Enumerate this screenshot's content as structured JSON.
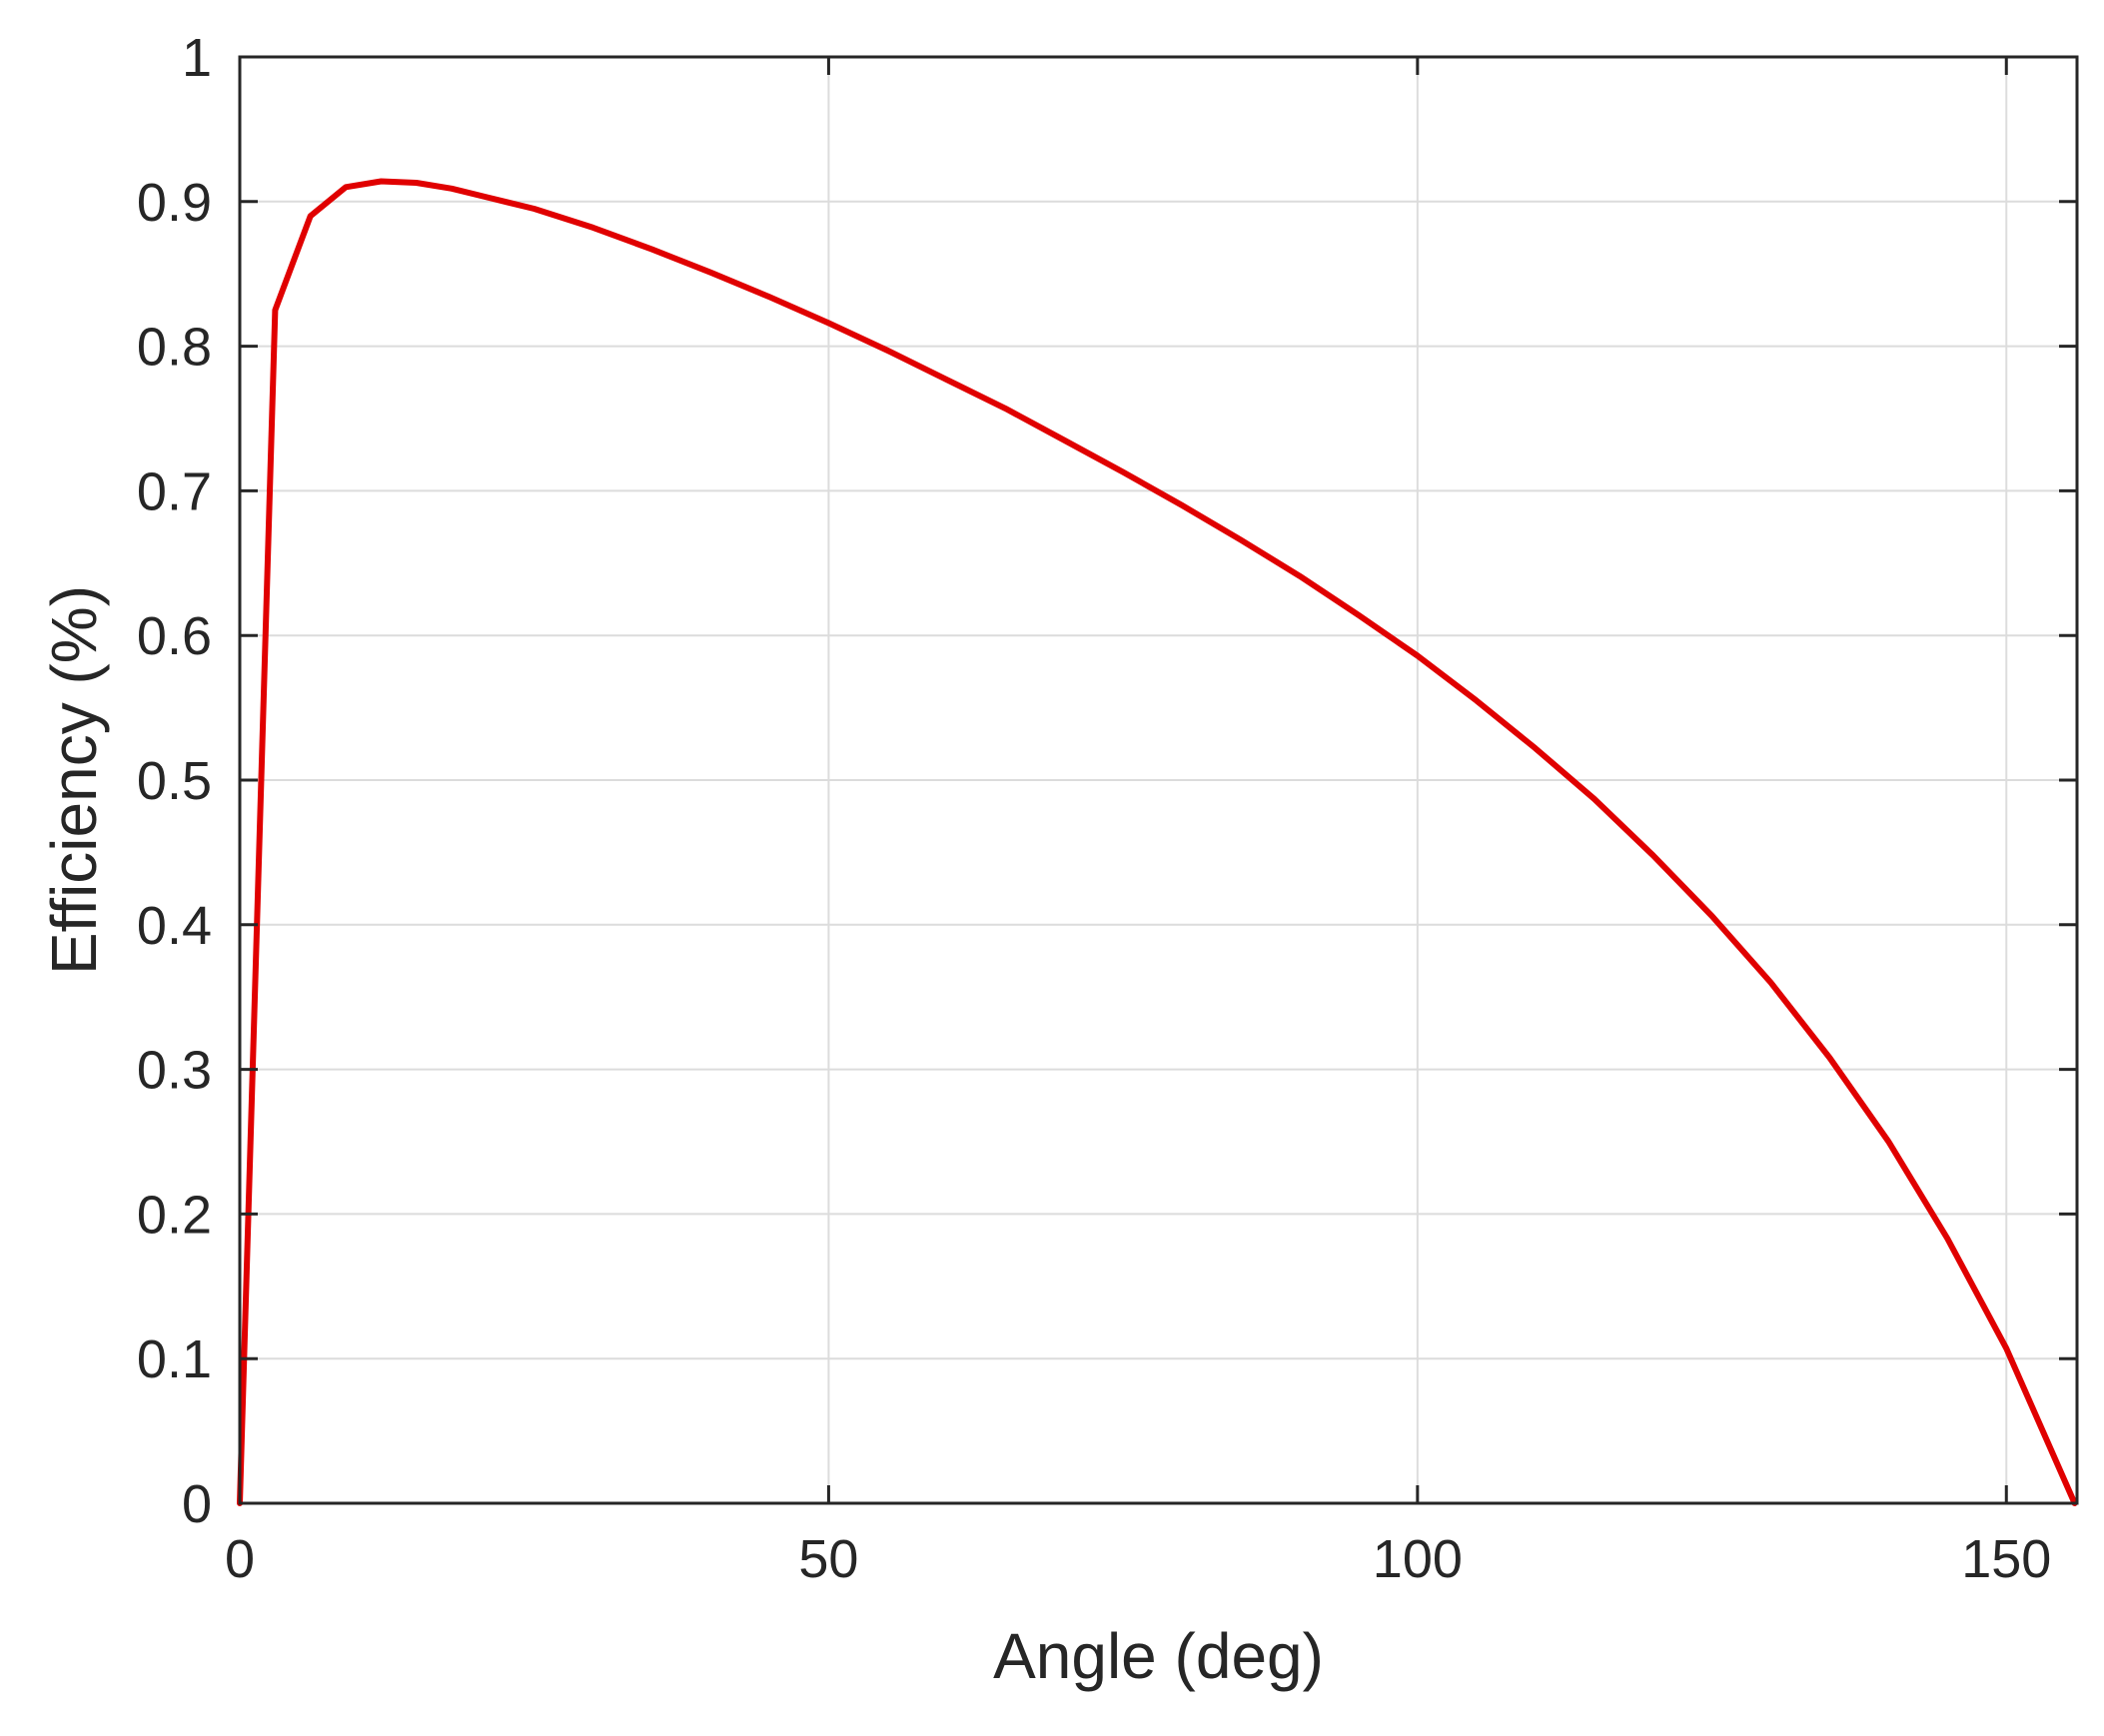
{
  "chart_data": {
    "type": "line",
    "xlabel": "Angle (deg)",
    "ylabel": "Efficiency (%)",
    "xlim": [
      0,
      156
    ],
    "ylim": [
      0,
      1
    ],
    "x_ticks": [
      0,
      50,
      100,
      150
    ],
    "y_ticks": [
      0,
      0.1,
      0.2,
      0.3,
      0.4,
      0.5,
      0.6,
      0.7,
      0.8,
      0.9,
      1
    ],
    "x_tick_labels": [
      "0",
      "50",
      "100",
      "150"
    ],
    "y_tick_labels": [
      "0",
      "0.1",
      "0.2",
      "0.3",
      "0.4",
      "0.5",
      "0.6",
      "0.7",
      "0.8",
      "0.9",
      "1"
    ],
    "grid": true,
    "series": [
      {
        "color": "#e00000",
        "x": [
          0,
          3,
          6,
          9,
          12,
          15,
          18,
          21,
          25,
          30,
          35,
          40,
          45,
          50,
          55,
          60,
          65,
          70,
          75,
          80,
          85,
          90,
          95,
          100,
          105,
          110,
          115,
          120,
          125,
          130,
          135,
          140,
          145,
          150,
          155.8
        ],
        "y": [
          0,
          0.825,
          0.89,
          0.91,
          0.914,
          0.913,
          0.909,
          0.903,
          0.895,
          0.882,
          0.867,
          0.851,
          0.834,
          0.816,
          0.797,
          0.777,
          0.757,
          0.735,
          0.713,
          0.69,
          0.666,
          0.641,
          0.614,
          0.586,
          0.555,
          0.522,
          0.487,
          0.448,
          0.406,
          0.36,
          0.308,
          0.25,
          0.183,
          0.107,
          0
        ]
      }
    ]
  }
}
